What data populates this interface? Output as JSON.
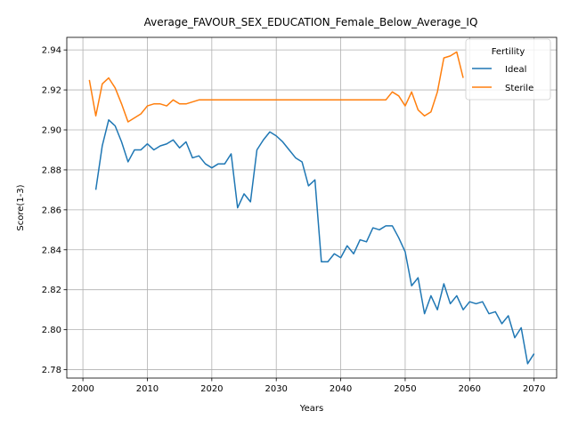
{
  "chart_data": {
    "type": "line",
    "title": "Average_FAVOUR_SEX_EDUCATION_Female_Below_Average_IQ",
    "xlabel": "Years",
    "ylabel": "Score(1-3)",
    "xlim": [
      1997.5,
      2073.5
    ],
    "ylim": [
      2.7758,
      2.9463
    ],
    "x_ticks": [
      2000,
      2010,
      2020,
      2030,
      2040,
      2050,
      2060,
      2070
    ],
    "y_ticks": [
      2.78,
      2.8,
      2.82,
      2.84,
      2.86,
      2.88,
      2.9,
      2.92,
      2.94
    ],
    "x_tick_labels": [
      "2000",
      "2010",
      "2020",
      "2030",
      "2040",
      "2050",
      "2060",
      "2070"
    ],
    "y_tick_labels": [
      "2.78",
      "2.80",
      "2.82",
      "2.84",
      "2.86",
      "2.88",
      "2.90",
      "2.92",
      "2.94"
    ],
    "grid": true,
    "legend": {
      "title": "Fertility",
      "placement": "top-right"
    },
    "series": [
      {
        "name": "Ideal",
        "color": "#1f77b4",
        "x": [
          2002,
          2003,
          2004,
          2005,
          2006,
          2007,
          2008,
          2009,
          2010,
          2011,
          2012,
          2013,
          2014,
          2015,
          2016,
          2017,
          2018,
          2019,
          2020,
          2021,
          2022,
          2023,
          2024,
          2025,
          2026,
          2027,
          2028,
          2029,
          2030,
          2031,
          2032,
          2033,
          2034,
          2035,
          2036,
          2037,
          2038,
          2039,
          2040,
          2041,
          2042,
          2043,
          2044,
          2045,
          2046,
          2047,
          2048,
          2049,
          2050,
          2051,
          2052,
          2053,
          2054,
          2055,
          2056,
          2057,
          2058,
          2059,
          2060,
          2061,
          2062,
          2063,
          2064,
          2065,
          2066,
          2067,
          2068,
          2069,
          2070
        ],
        "y": [
          2.87,
          2.892,
          2.905,
          2.902,
          2.894,
          2.884,
          2.89,
          2.89,
          2.893,
          2.89,
          2.892,
          2.893,
          2.895,
          2.891,
          2.894,
          2.886,
          2.887,
          2.883,
          2.881,
          2.883,
          2.883,
          2.888,
          2.861,
          2.868,
          2.864,
          2.89,
          2.895,
          2.899,
          2.897,
          2.894,
          2.89,
          2.886,
          2.884,
          2.872,
          2.875,
          2.834,
          2.834,
          2.838,
          2.836,
          2.842,
          2.838,
          2.845,
          2.844,
          2.851,
          2.85,
          2.852,
          2.852,
          2.846,
          2.839,
          2.822,
          2.826,
          2.808,
          2.817,
          2.81,
          2.823,
          2.813,
          2.817,
          2.81,
          2.814,
          2.813,
          2.814,
          2.808,
          2.809,
          2.803,
          2.807,
          2.796,
          2.801,
          2.783,
          2.788
        ]
      },
      {
        "name": "Sterile",
        "color": "#ff7f0e",
        "x": [
          2001,
          2002,
          2003,
          2004,
          2005,
          2006,
          2007,
          2008,
          2009,
          2010,
          2011,
          2012,
          2013,
          2014,
          2015,
          2016,
          2017,
          2018,
          2019,
          2020,
          2021,
          2022,
          2023,
          2024,
          2025,
          2026,
          2027,
          2028,
          2029,
          2030,
          2031,
          2032,
          2033,
          2034,
          2035,
          2036,
          2037,
          2038,
          2039,
          2040,
          2041,
          2042,
          2043,
          2044,
          2045,
          2046,
          2047,
          2048,
          2049,
          2050,
          2051,
          2052,
          2053,
          2054,
          2055,
          2056,
          2057,
          2058,
          2059
        ],
        "y": [
          2.925,
          2.907,
          2.923,
          2.926,
          2.921,
          2.913,
          2.904,
          2.906,
          2.908,
          2.912,
          2.913,
          2.913,
          2.912,
          2.915,
          2.913,
          2.913,
          2.914,
          2.915,
          2.915,
          2.915,
          2.915,
          2.915,
          2.915,
          2.915,
          2.915,
          2.915,
          2.915,
          2.915,
          2.915,
          2.915,
          2.915,
          2.915,
          2.915,
          2.915,
          2.915,
          2.915,
          2.915,
          2.915,
          2.915,
          2.915,
          2.915,
          2.915,
          2.915,
          2.915,
          2.915,
          2.915,
          2.915,
          2.919,
          2.917,
          2.912,
          2.919,
          2.91,
          2.907,
          2.909,
          2.919,
          2.936,
          2.937,
          2.939,
          2.926
        ]
      }
    ]
  }
}
